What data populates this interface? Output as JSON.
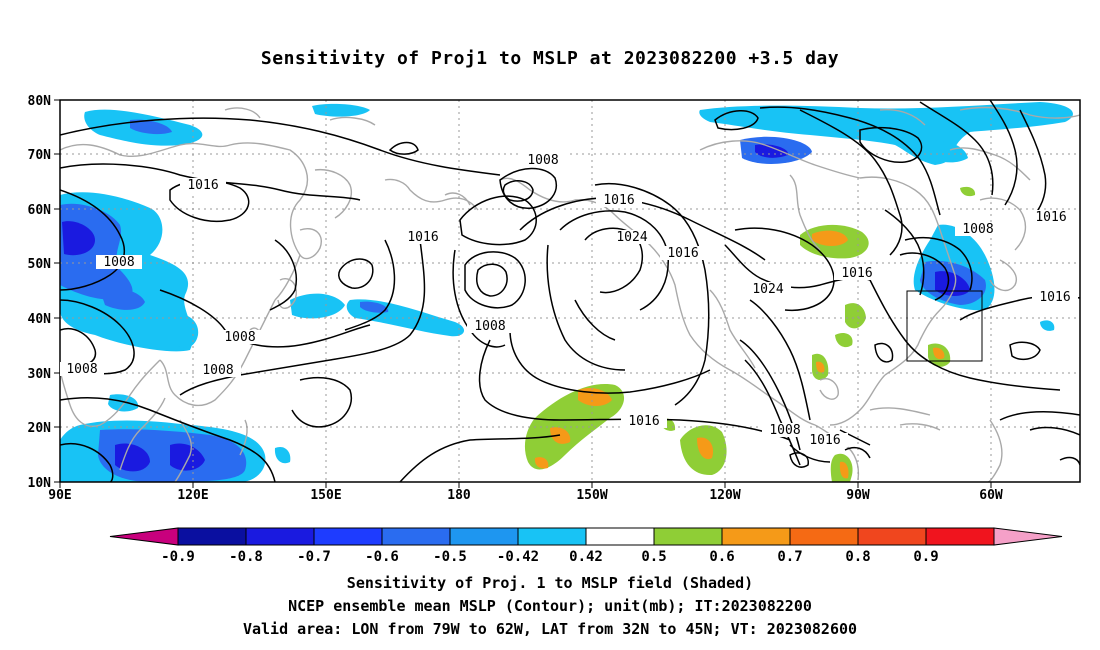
{
  "title": "Sensitivity of Proj1 to MSLP at 2023082200 +3.5 day",
  "map": {
    "lon_ticks": [
      "90E",
      "120E",
      "150E",
      "180",
      "150W",
      "120W",
      "90W",
      "60W"
    ],
    "lat_ticks": [
      "80N",
      "70N",
      "60N",
      "50N",
      "40N",
      "30N",
      "20N",
      "10N"
    ],
    "grid": "dotted",
    "colors": {
      "coast": "#a9a9a9",
      "contour": "#000000",
      "s_neg_09": "#0a0fa0",
      "s_neg_08": "#1a1ae0",
      "s_neg_07": "#1e3cff",
      "s_neg_06": "#2a6cf0",
      "s_neg_05": "#1e96f0",
      "s_neg_042": "#18c3f5",
      "s_pos_042": "#8fce36",
      "s_pos_05": "#f59a18",
      "s_pos_06": "#f56a14",
      "s_pos_07": "#f0461e",
      "s_pos_08": "#f0141e"
    },
    "contour_labels": [
      {
        "text": "1008"
      },
      {
        "text": "1016"
      },
      {
        "text": "1016"
      },
      {
        "text": "1008"
      },
      {
        "text": "1016"
      },
      {
        "text": "1024"
      },
      {
        "text": "1016"
      },
      {
        "text": "1008"
      },
      {
        "text": "1024"
      },
      {
        "text": "1016"
      },
      {
        "text": "1008"
      },
      {
        "text": "1016"
      },
      {
        "text": "1016"
      },
      {
        "text": "1008"
      },
      {
        "text": "1008"
      },
      {
        "text": "1008"
      },
      {
        "text": "1016"
      },
      {
        "text": "1008"
      },
      {
        "text": "1016"
      },
      {
        "text": "1016"
      }
    ],
    "valid_box": {
      "lon_min": "79W",
      "lon_max": "62W",
      "lat_min": "32N",
      "lat_max": "45N"
    }
  },
  "colorbar": {
    "labels": [
      "-0.9",
      "-0.8",
      "-0.7",
      "-0.6",
      "-0.5",
      "-0.42",
      "0.42",
      "0.5",
      "0.6",
      "0.7",
      "0.8",
      "0.9"
    ],
    "colors": [
      "#c8007d",
      "#0a0fa0",
      "#1a1ae0",
      "#1e3cff",
      "#2a6cf0",
      "#1e96f0",
      "#18c3f5",
      "#ffffff",
      "#8fce36",
      "#f59a18",
      "#f56a14",
      "#f0461e",
      "#f0141e",
      "#f5a0c8"
    ]
  },
  "footer": {
    "line1": "Sensitivity of Proj. 1 to MSLP field (Shaded)",
    "line2": "NCEP ensemble mean MSLP (Contour); unit(mb); IT:2023082200",
    "line3": "Valid area: LON from 79W to 62W, LAT from 32N to 45N; VT: 2023082600"
  }
}
